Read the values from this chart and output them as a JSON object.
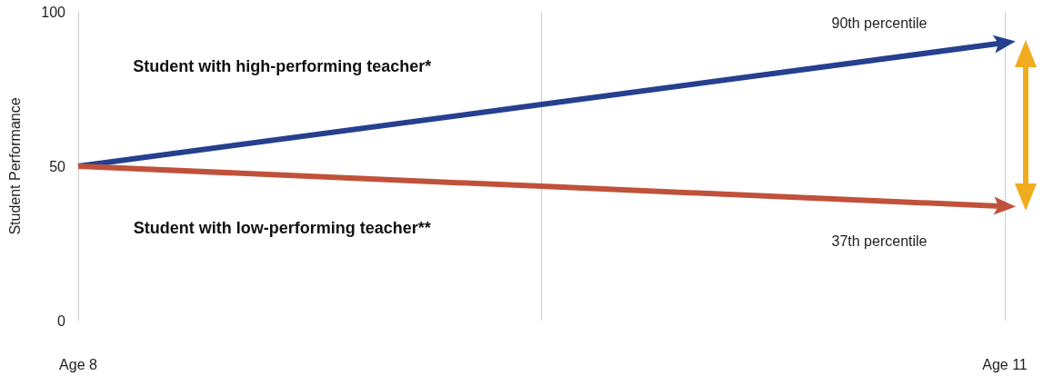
{
  "chart_data": {
    "type": "line",
    "ylabel": "Student Performance",
    "categories": [
      "Age 8",
      null,
      "Age 11"
    ],
    "ylim": [
      0,
      100
    ],
    "yticks": [
      0,
      50,
      100
    ],
    "grid": "x",
    "line_style": "solid",
    "series": [
      {
        "name": "Student with high-performing teacher*",
        "color": "#263f8f",
        "values": [
          50,
          70,
          90
        ]
      },
      {
        "name": "Student with low-performing teacher**",
        "color": "#c0513a",
        "values": [
          50,
          43.5,
          37
        ]
      }
    ],
    "annotations": [
      "90th percentile",
      "37th percentile"
    ]
  }
}
